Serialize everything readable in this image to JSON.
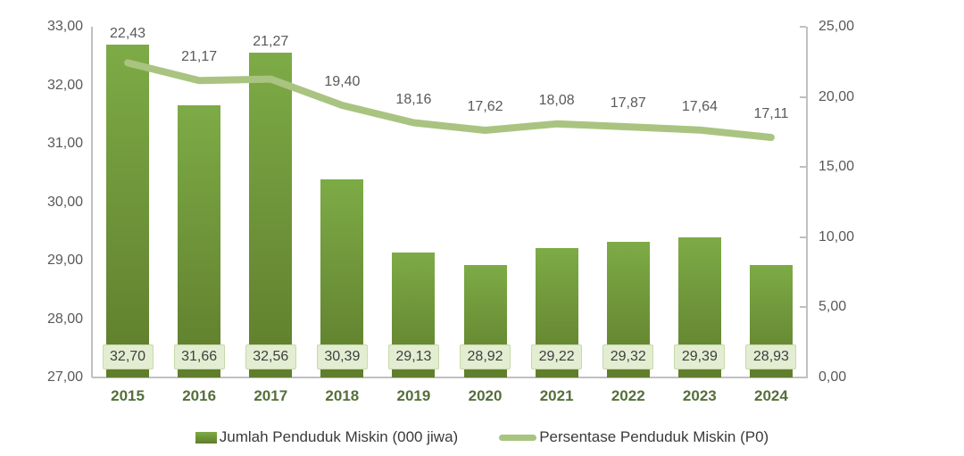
{
  "chart_data": {
    "type": "bar+line",
    "title": "",
    "categories": [
      "2015",
      "2016",
      "2017",
      "2018",
      "2019",
      "2020",
      "2021",
      "2022",
      "2023",
      "2024"
    ],
    "series": [
      {
        "name": "Jumlah Penduduk Miskin (000 jiwa)",
        "type": "bar",
        "axis": "left",
        "values": [
          32.7,
          31.66,
          32.56,
          30.39,
          29.13,
          28.92,
          29.22,
          29.32,
          29.39,
          28.93
        ],
        "labels": [
          "32,70",
          "31,66",
          "32,56",
          "30,39",
          "29,13",
          "28,92",
          "29,22",
          "29,32",
          "29,39",
          "28,93"
        ]
      },
      {
        "name": "Persentase Penduduk Miskin (P0)",
        "type": "line",
        "axis": "right",
        "values": [
          22.43,
          21.17,
          21.27,
          19.4,
          18.16,
          17.62,
          18.08,
          17.87,
          17.64,
          17.11
        ],
        "labels": [
          "22,43",
          "21,17",
          "21,27",
          "19,40",
          "18,16",
          "17,62",
          "18,08",
          "17,87",
          "17,64",
          "17,11"
        ]
      }
    ],
    "left_axis": {
      "min": 27,
      "max": 33,
      "tick_labels": [
        "33,00",
        "32,00",
        "31,00",
        "30,00",
        "29,00",
        "28,00",
        "27,00"
      ]
    },
    "right_axis": {
      "min": 0,
      "max": 25,
      "tick_labels": [
        "25,00",
        "20,00",
        "15,00",
        "10,00",
        "5,00",
        "0,00"
      ]
    },
    "grid": false,
    "legend_position": "bottom"
  },
  "colors": {
    "bar_top": "#7dab46",
    "bar_bottom": "#5f7d2c",
    "line_color": "#a9c480",
    "box_bg": "#e3edd2",
    "box_border": "#c9d9a8",
    "value_text": "#3f3f3f",
    "line_label_text": "#595959",
    "axis_text": "#595959",
    "axis_line": "#c0c0c0",
    "year_text": "#556f3a",
    "legend_text": "#3a3a3a"
  }
}
